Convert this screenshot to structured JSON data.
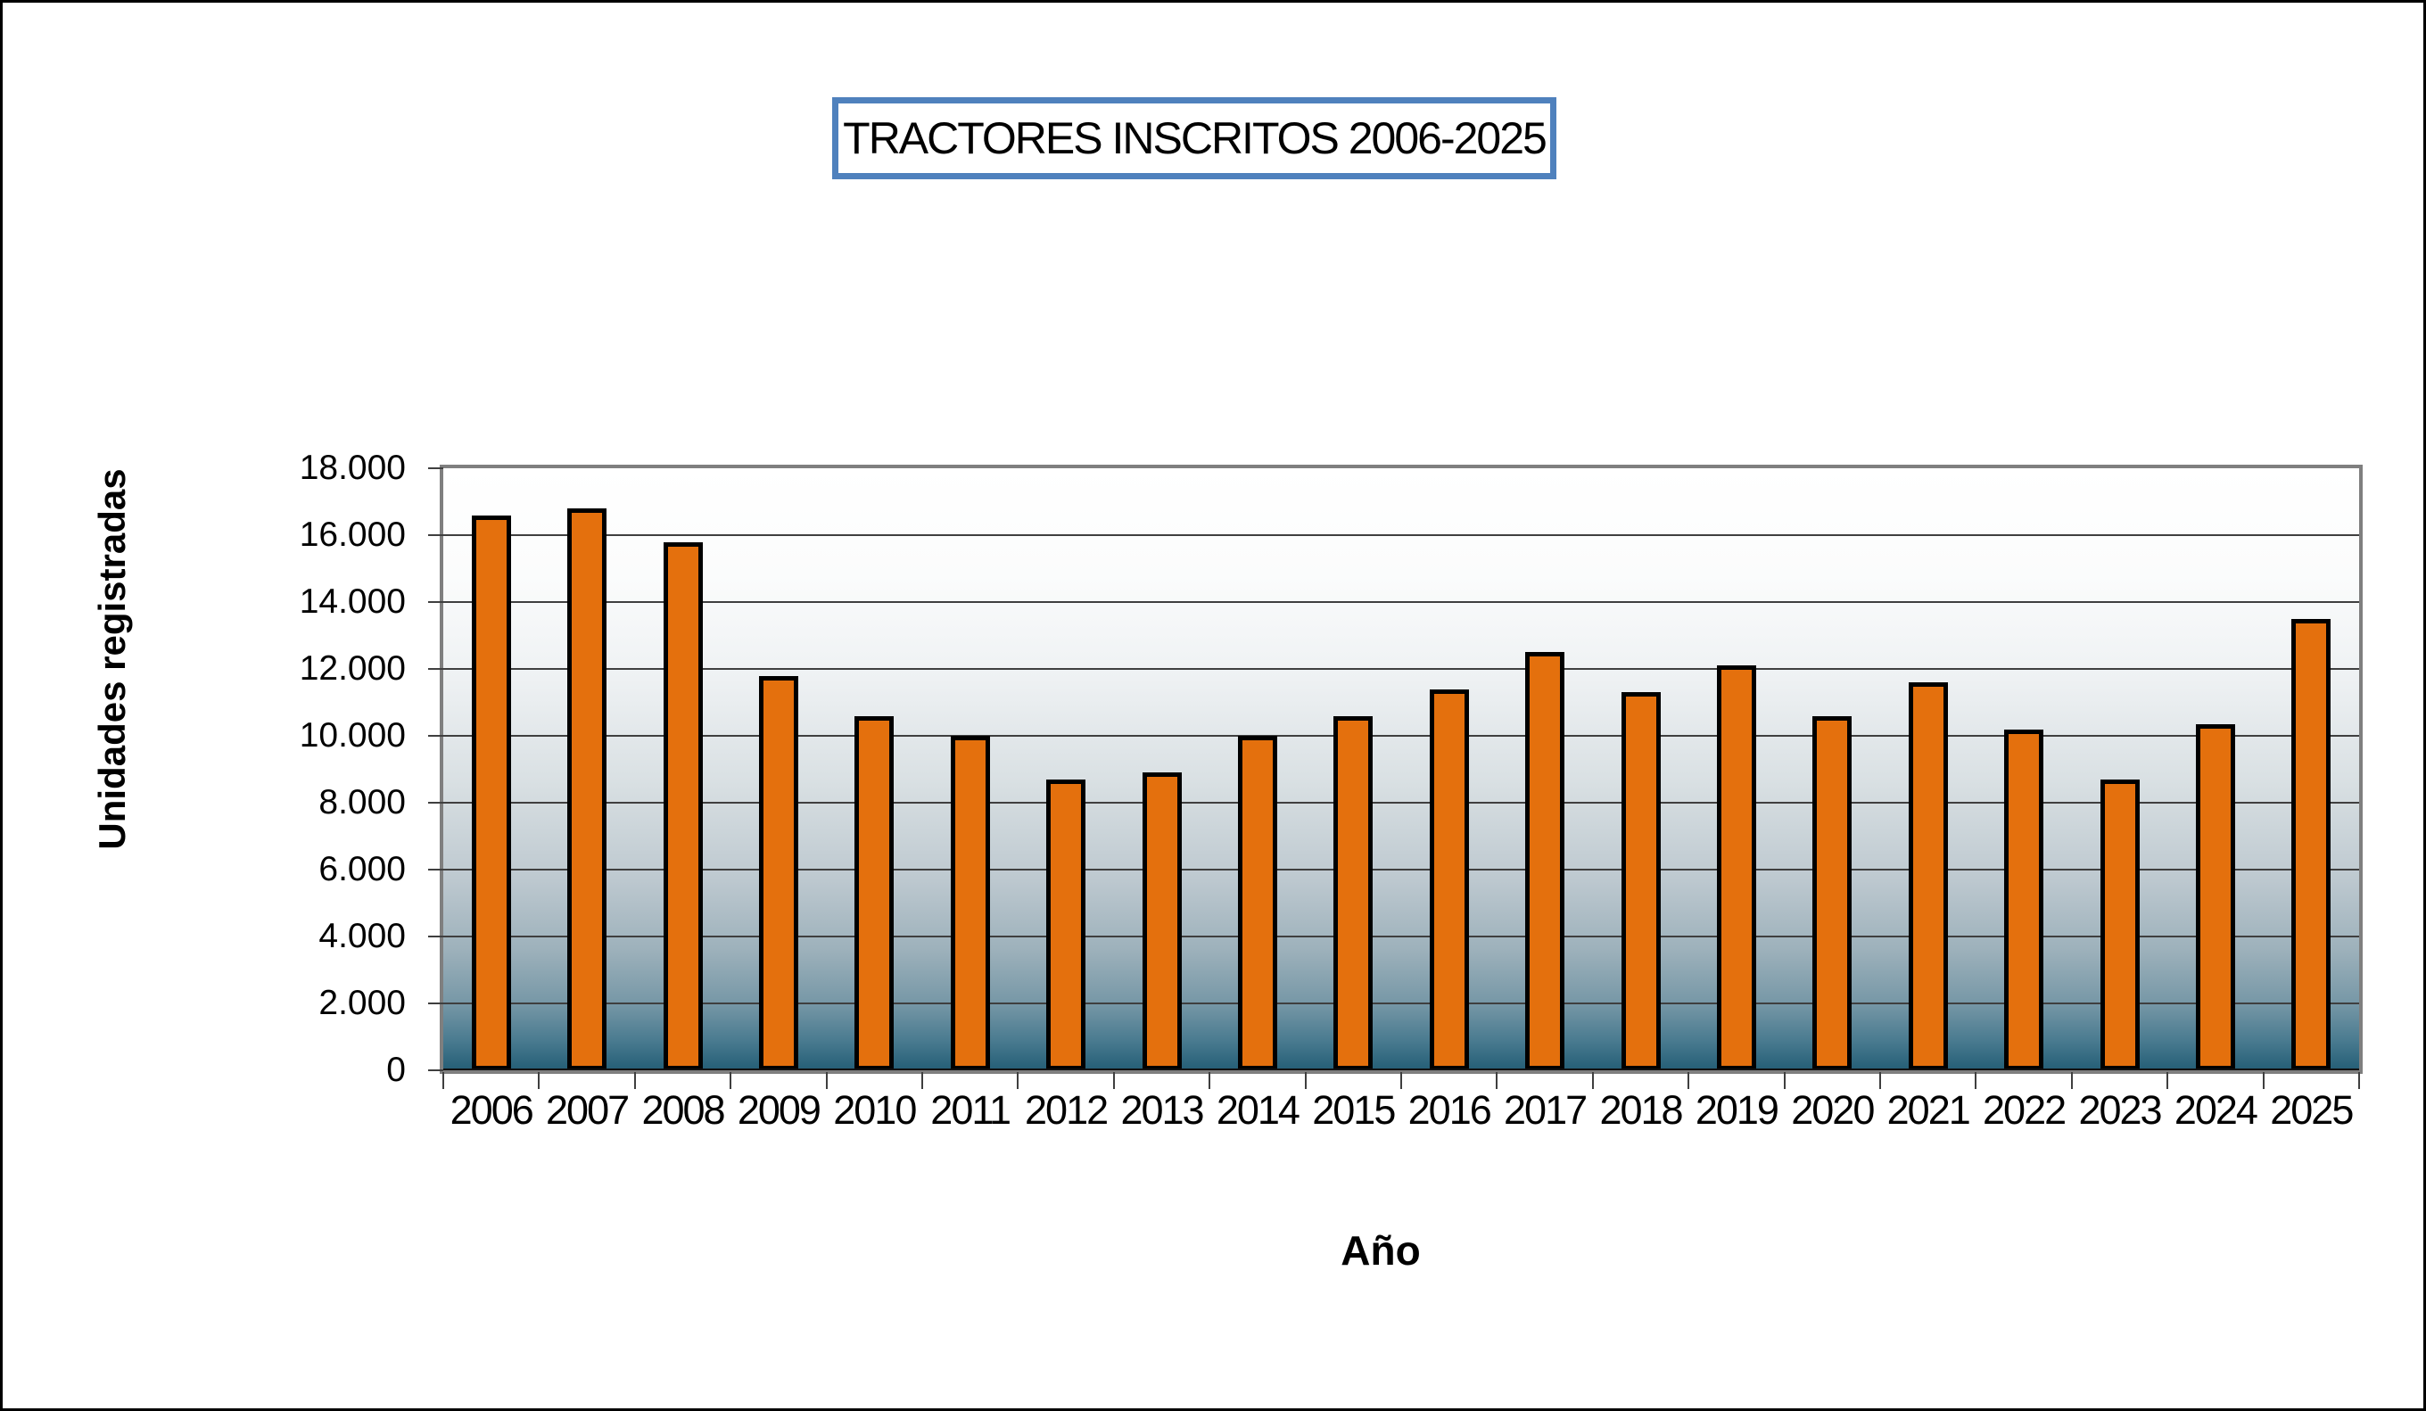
{
  "title": {
    "text": "TRACTORES INSCRITOS 2006-2025",
    "border_color": "#4F81BD"
  },
  "axes": {
    "y_title": "Unidades registradas",
    "x_title": "Año"
  },
  "colors": {
    "bar_fill": "#E4700D",
    "bar_border": "#000000",
    "plot_border": "#7F7F7F",
    "gridline": "#3f3f3f",
    "plot_bg_top": "#ffffff",
    "plot_bg_bottom": "#245e76",
    "figure_border": "#000000"
  },
  "chart_data": {
    "type": "bar",
    "title": "TRACTORES INSCRITOS 2006-2025",
    "xlabel": "Año",
    "ylabel": "Unidades registradas",
    "categories": [
      "2006",
      "2007",
      "2008",
      "2009",
      "2010",
      "2011",
      "2012",
      "2013",
      "2014",
      "2015",
      "2016",
      "2017",
      "2018",
      "2019",
      "2020",
      "2021",
      "2022",
      "2023",
      "2024",
      "2025"
    ],
    "values": [
      16600,
      16800,
      15800,
      11800,
      10600,
      10000,
      8700,
      8900,
      10000,
      10600,
      11400,
      12500,
      11300,
      12100,
      10600,
      11600,
      10200,
      8700,
      10350,
      13500
    ],
    "ylim": [
      0,
      18000
    ],
    "ytick_step": 2000,
    "ytick_values": [
      0,
      2000,
      4000,
      6000,
      8000,
      10000,
      12000,
      14000,
      16000,
      18000
    ],
    "ytick_labels": [
      "0",
      "2.000",
      "4.000",
      "6.000",
      "8.000",
      "10.000",
      "12.000",
      "14.000",
      "16.000",
      "18.000"
    ],
    "grid": true,
    "legend": false
  }
}
